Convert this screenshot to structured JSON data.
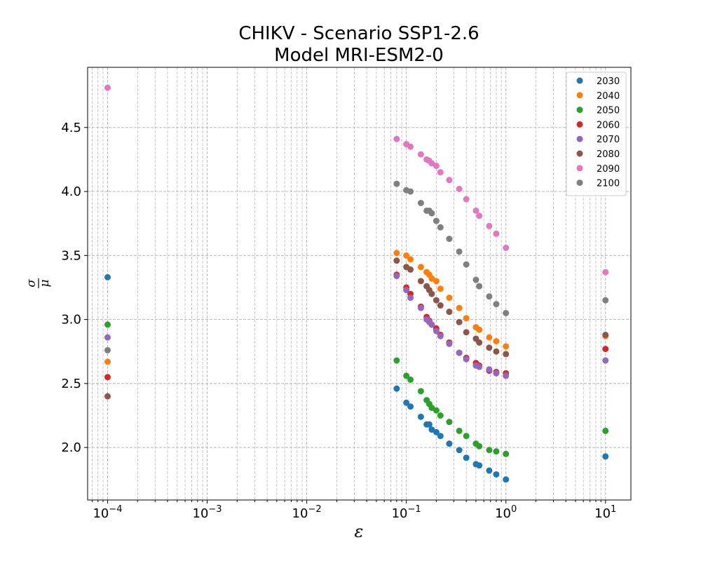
{
  "chart_data": {
    "type": "scatter",
    "title_line1": "CHIKV - Scenario SSP1-2.6",
    "title_line2": "Model MRI-ESM2-0",
    "xscale": "log",
    "xlim": [
      6.3e-05,
      18
    ],
    "ylim": [
      1.59,
      4.97
    ],
    "grid": true,
    "legend_position": "top-right",
    "x_ticks": [
      {
        "value": 0.0001,
        "base": "10",
        "exp": "−4"
      },
      {
        "value": 0.001,
        "base": "10",
        "exp": "−3"
      },
      {
        "value": 0.01,
        "base": "10",
        "exp": "−2"
      },
      {
        "value": 0.1,
        "base": "10",
        "exp": "−1"
      },
      {
        "value": 1,
        "base": "10",
        "exp": "0"
      },
      {
        "value": 10,
        "base": "10",
        "exp": "1"
      }
    ],
    "y_ticks": [
      {
        "value": 2.0,
        "label": "2.0"
      },
      {
        "value": 2.5,
        "label": "2.5"
      },
      {
        "value": 3.0,
        "label": "3.0"
      },
      {
        "value": 3.5,
        "label": "3.5"
      },
      {
        "value": 4.0,
        "label": "4.0"
      },
      {
        "value": 4.5,
        "label": "4.5"
      }
    ],
    "x": [
      0.0001,
      0.08,
      0.1,
      0.11,
      0.14,
      0.16,
      0.17,
      0.18,
      0.2,
      0.22,
      0.27,
      0.34,
      0.4,
      0.5,
      0.54,
      0.68,
      0.8,
      1.0,
      10
    ],
    "series": [
      {
        "name": "2030",
        "color": "#1f77b4",
        "values": [
          3.33,
          2.46,
          2.35,
          2.32,
          2.24,
          2.18,
          2.18,
          2.14,
          2.12,
          2.09,
          2.03,
          1.98,
          1.92,
          1.87,
          1.86,
          1.82,
          1.79,
          1.75,
          1.93
        ]
      },
      {
        "name": "2040",
        "color": "#ff7f0e",
        "values": [
          2.67,
          3.52,
          3.5,
          3.47,
          3.41,
          3.37,
          3.35,
          3.32,
          3.3,
          3.24,
          3.17,
          3.09,
          3.01,
          2.94,
          2.92,
          2.86,
          2.83,
          2.79,
          2.87
        ]
      },
      {
        "name": "2050",
        "color": "#2ca02c",
        "values": [
          2.96,
          2.68,
          2.56,
          2.53,
          2.44,
          2.37,
          2.34,
          2.31,
          2.29,
          2.25,
          2.2,
          2.13,
          2.09,
          2.03,
          2.01,
          1.98,
          1.97,
          1.95,
          2.13
        ]
      },
      {
        "name": "2060",
        "color": "#d62728",
        "values": [
          2.55,
          3.35,
          3.25,
          3.2,
          3.1,
          3.02,
          2.99,
          2.96,
          2.93,
          2.88,
          2.82,
          2.74,
          2.7,
          2.66,
          2.64,
          2.6,
          2.59,
          2.58,
          2.77
        ]
      },
      {
        "name": "2070",
        "color": "#9467bd",
        "values": [
          2.86,
          3.34,
          3.23,
          3.17,
          3.09,
          3.0,
          2.98,
          2.96,
          2.91,
          2.87,
          2.81,
          2.74,
          2.69,
          2.64,
          2.63,
          2.61,
          2.58,
          2.56,
          2.68
        ]
      },
      {
        "name": "2080",
        "color": "#8c564b",
        "values": [
          2.4,
          3.46,
          3.41,
          3.39,
          3.3,
          3.26,
          3.23,
          3.2,
          3.15,
          3.11,
          3.06,
          2.98,
          2.9,
          2.85,
          2.82,
          2.78,
          2.75,
          2.73,
          2.88
        ]
      },
      {
        "name": "2090",
        "color": "#e377c2",
        "values": [
          4.81,
          4.41,
          4.37,
          4.35,
          4.29,
          4.25,
          4.24,
          4.22,
          4.2,
          4.15,
          4.09,
          4.02,
          3.94,
          3.85,
          3.81,
          3.73,
          3.67,
          3.56,
          3.37
        ]
      },
      {
        "name": "2100",
        "color": "#7f7f7f",
        "values": [
          2.76,
          4.06,
          4.01,
          4.0,
          3.91,
          3.85,
          3.85,
          3.83,
          3.77,
          3.72,
          3.63,
          3.53,
          3.43,
          3.31,
          3.26,
          3.18,
          3.12,
          3.05,
          3.15
        ]
      }
    ]
  }
}
